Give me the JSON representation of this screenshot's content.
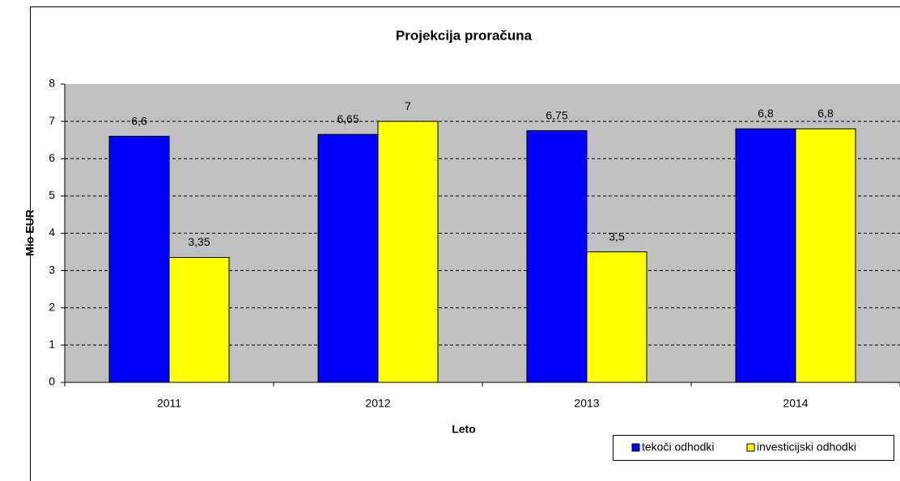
{
  "chart_data": {
    "type": "bar",
    "title": "Projekcija proračuna",
    "x_label": "Leto",
    "y_label": "Mio EUR",
    "categories": [
      "2011",
      "2012",
      "2013",
      "2014"
    ],
    "series": [
      {
        "name": "tekoči odhodki",
        "color": "#0000ff",
        "values": [
          6.6,
          6.65,
          6.75,
          6.8
        ],
        "value_labels": [
          "6,6",
          "6,65",
          "6,75",
          "6,8"
        ]
      },
      {
        "name": "investicijski odhodki",
        "color": "#ffff00",
        "values": [
          3.35,
          7,
          3.5,
          6.8
        ],
        "value_labels": [
          "3,35",
          "7",
          "3,5",
          "6,8"
        ]
      }
    ],
    "ylim": [
      0,
      8
    ],
    "yticks": [
      0,
      1,
      2,
      3,
      4,
      5,
      6,
      7,
      8
    ],
    "grid": true,
    "legend": "bottom-right"
  }
}
